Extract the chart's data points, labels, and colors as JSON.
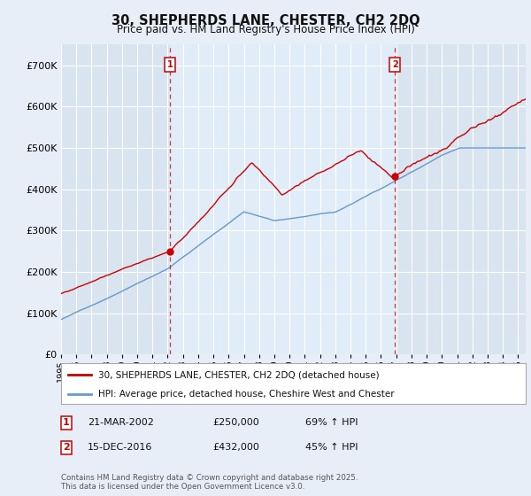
{
  "title": "30, SHEPHERDS LANE, CHESTER, CH2 2DQ",
  "subtitle": "Price paid vs. HM Land Registry's House Price Index (HPI)",
  "bg_color": "#e8eef8",
  "plot_bg_color": "#d8e4f0",
  "plot_bg_color2": "#e0ecf8",
  "grid_color": "#ffffff",
  "red_color": "#cc0000",
  "blue_color": "#6699cc",
  "marker1_date": "21-MAR-2002",
  "marker1_price": 250000,
  "marker1_hpi": "69% ↑ HPI",
  "marker2_date": "15-DEC-2016",
  "marker2_price": 432000,
  "marker2_hpi": "45% ↑ HPI",
  "ylim_max": 750000,
  "ylim_min": 0,
  "legend_label1": "30, SHEPHERDS LANE, CHESTER, CH2 2DQ (detached house)",
  "legend_label2": "HPI: Average price, detached house, Cheshire West and Chester",
  "footer": "Contains HM Land Registry data © Crown copyright and database right 2025.\nThis data is licensed under the Open Government Licence v3.0.",
  "x_start_year": 1995,
  "x_end_year": 2025
}
